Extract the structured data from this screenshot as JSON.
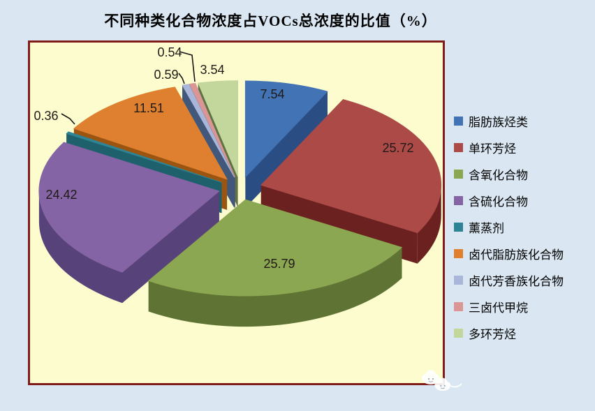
{
  "title": "不同种类化合物浓度占VOCs总浓度的比值（%）",
  "colors": {
    "page_bg": "#DAE7F2",
    "plot_bg": "#FCFCCE",
    "plot_border": "#801C1A",
    "label_text": "#1F1A17"
  },
  "watermark": {
    "icon": "cloud-mascot-icon"
  },
  "chart_data": {
    "type": "pie",
    "style": "3d-exploded",
    "title": "不同种类化合物浓度占VOCs总浓度的比值（%）",
    "unit": "%",
    "start_angle_deg": 0,
    "direction": "clockwise",
    "legend_position": "right",
    "data_labels": "value",
    "series": [
      {
        "label": "脂肪族烃类",
        "value": 7.54,
        "color": "#4273B4",
        "side_color": "#2A4D84"
      },
      {
        "label": "单环芳烃",
        "value": 25.72,
        "color": "#AC4A47",
        "side_color": "#6B211F"
      },
      {
        "label": "含氧化合物",
        "value": 25.79,
        "color": "#8CA751",
        "side_color": "#5F7434"
      },
      {
        "label": "含硫化合物",
        "value": 24.42,
        "color": "#8464A4",
        "side_color": "#57427A"
      },
      {
        "label": "薰蒸剂",
        "value": 0.36,
        "color": "#2E8494",
        "side_color": "#1E616D"
      },
      {
        "label": "卤代脂肪族化合物",
        "value": 11.51,
        "color": "#DE802F",
        "side_color": "#9B5511"
      },
      {
        "label": "卤代芳香族化合物",
        "value": 0.59,
        "color": "#A9B5D9",
        "side_color": "#41587A"
      },
      {
        "label": "三卤代甲烷",
        "value": 0.54,
        "color": "#D99694",
        "side_color": "#4A5875"
      },
      {
        "label": "多环芳烃",
        "value": 3.54,
        "color": "#C3D69B",
        "side_color": "#5F7243"
      }
    ]
  }
}
